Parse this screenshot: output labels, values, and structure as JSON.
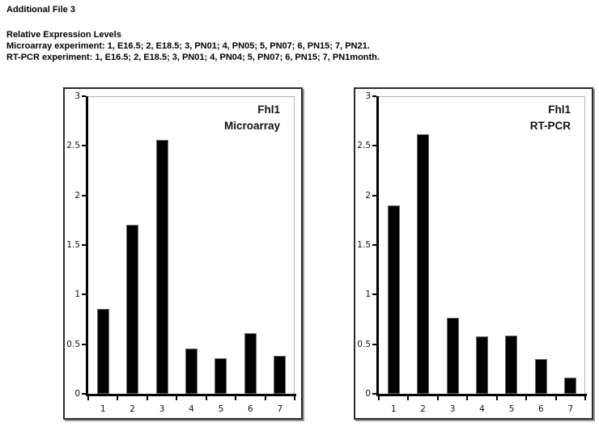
{
  "page": {
    "title": "Additional File 3",
    "caption_title": "Relative Expression Levels",
    "caption_lines": [
      "Microarray experiment: 1, E16.5; 2, E18.5; 3, PN01; 4, PN05; 5, PN07; 6, PN15; 7, PN21.",
      "RT-PCR experiment: 1, E16.5; 2, E18.5; 3, PN01; 4, PN04; 5, PN07; 6, PN15; 7, PN1month."
    ]
  },
  "colors": {
    "bar": "#000000",
    "axis": "#000000",
    "plot_border": "#b3b3b3",
    "frame": "#2b2b2b",
    "background": "#ffffff"
  },
  "chart_data": [
    {
      "type": "bar",
      "title": "Fhl1",
      "subtitle": "Microarray",
      "categories": [
        "1",
        "2",
        "3",
        "4",
        "5",
        "6",
        "7"
      ],
      "values": [
        0.86,
        1.7,
        2.56,
        0.46,
        0.36,
        0.61,
        0.38
      ],
      "xlabel": "",
      "ylabel": "",
      "ylim": [
        0,
        3
      ],
      "yticks": [
        0,
        0.5,
        1,
        1.5,
        2,
        2.5,
        3
      ],
      "grid": false,
      "legend_position": "top-right-inside"
    },
    {
      "type": "bar",
      "title": "Fhl1",
      "subtitle": "RT-PCR",
      "categories": [
        "1",
        "2",
        "3",
        "4",
        "5",
        "6",
        "7"
      ],
      "values": [
        1.9,
        2.62,
        0.77,
        0.58,
        0.59,
        0.35,
        0.16
      ],
      "xlabel": "",
      "ylabel": "",
      "ylim": [
        0,
        3
      ],
      "yticks": [
        0,
        0.5,
        1,
        1.5,
        2,
        2.5,
        3
      ],
      "grid": false,
      "legend_position": "top-right-inside"
    }
  ]
}
